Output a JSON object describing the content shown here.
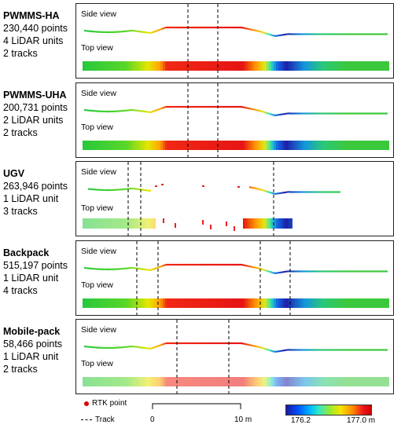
{
  "platforms": [
    {
      "name": "PWMMS-HA",
      "points": "230,440 points",
      "units": "4 LiDAR units",
      "tracks": "2 tracks",
      "side_label": "Side view",
      "top_label": "Top view"
    },
    {
      "name": "PWMMS-UHA",
      "points": "200,731 points",
      "units": "2 LiDAR units",
      "tracks": "2 tracks",
      "side_label": "Side view",
      "top_label": "Top view"
    },
    {
      "name": "UGV",
      "points": "263,946 points",
      "units": "1 LiDAR unit",
      "tracks": "3 tracks",
      "side_label": "Side view",
      "top_label": "Top view"
    },
    {
      "name": "Backpack",
      "points": "515,197 points",
      "units": "1 LiDAR unit",
      "tracks": "4 tracks",
      "side_label": "Side view",
      "top_label": "Top view"
    },
    {
      "name": "Mobile-pack",
      "points": "58,466 points",
      "units": "1 LiDAR unit",
      "tracks": "2 tracks",
      "side_label": "Side view",
      "top_label": "Top view"
    }
  ],
  "legend": {
    "rtk_label": "RTK point",
    "track_label": "Track",
    "scale_start": "0",
    "scale_end": "10 m",
    "color_min": "176.2",
    "color_max": "177.0 m",
    "rtk_color": "#e00000"
  }
}
